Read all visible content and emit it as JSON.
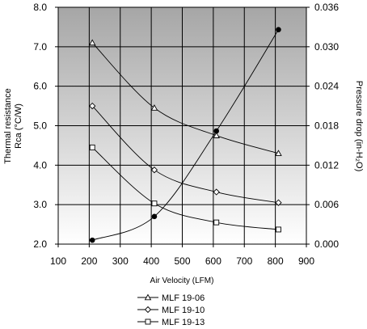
{
  "chart_data": {
    "type": "line",
    "xlabel": "Air Velocity (LFM)",
    "ylabel_left_line1": "Thermal resistance",
    "ylabel_left_line2": "Rca (°C/W)",
    "ylabel_right": "Pressure drop (in-H₂O)",
    "xlim": [
      100,
      900
    ],
    "xticks": [
      100,
      200,
      300,
      400,
      500,
      600,
      700,
      800,
      900
    ],
    "ylim_left": [
      2.0,
      8.0
    ],
    "yticks_left": [
      "2.0",
      "3.0",
      "4.0",
      "5.0",
      "6.0",
      "7.0",
      "8.0"
    ],
    "ylim_right": [
      0,
      0.036
    ],
    "yticks_right": [
      "0.000",
      "0.006",
      "0.012",
      "0.018",
      "0.024",
      "0.030",
      "0.036"
    ],
    "grid": true,
    "legend_position": "bottom",
    "series": [
      {
        "name": "MLF 19-06",
        "marker": "triangle",
        "axis": "left",
        "x": [
          210,
          410,
          610,
          810
        ],
        "y": [
          7.1,
          5.45,
          4.75,
          4.3
        ]
      },
      {
        "name": "MLF 19-10",
        "marker": "diamond",
        "axis": "left",
        "x": [
          210,
          410,
          610,
          810
        ],
        "y": [
          5.5,
          3.88,
          3.32,
          3.05
        ]
      },
      {
        "name": "MLF 19-13",
        "marker": "square",
        "axis": "left",
        "x": [
          210,
          410,
          610,
          810
        ],
        "y": [
          4.45,
          3.03,
          2.55,
          2.37
        ]
      },
      {
        "name": "",
        "marker": "filled-circle",
        "axis": "right",
        "x": [
          210,
          410,
          610,
          810
        ],
        "y": [
          0.0006,
          0.0042,
          0.0172,
          0.0326
        ]
      }
    ]
  }
}
